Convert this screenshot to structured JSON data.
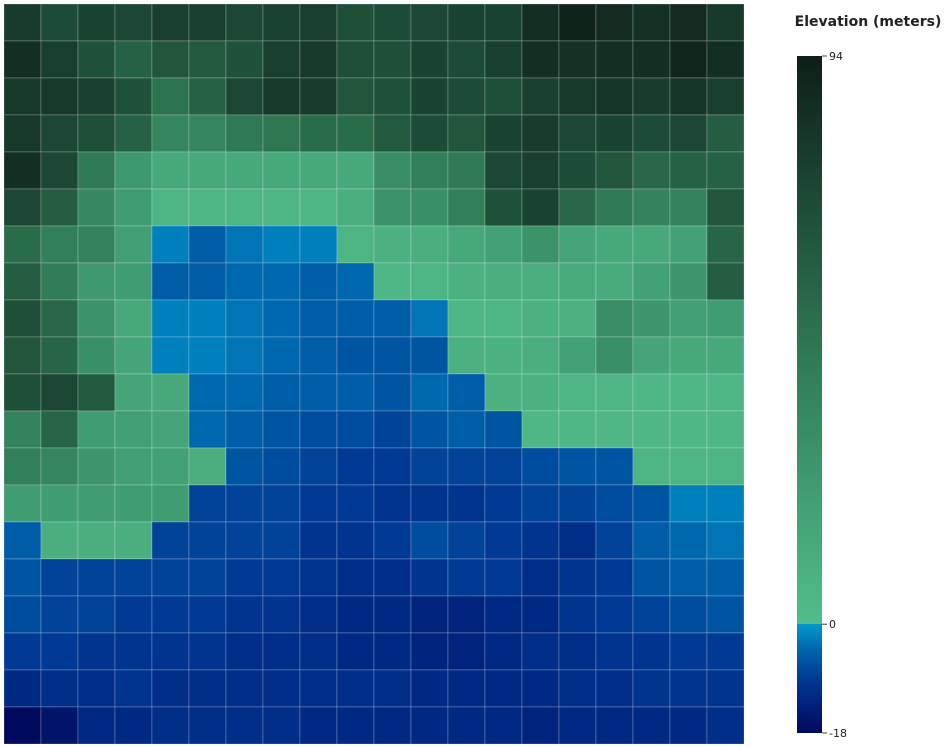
{
  "chart_data": {
    "type": "heatmap",
    "title": "",
    "xlabel": "",
    "ylabel": "",
    "rows": 20,
    "cols": 20,
    "grid": true,
    "legend": {
      "title": "Elevation (meters)",
      "placement": "right",
      "min": -18,
      "max": 94,
      "break": 0,
      "tick_labels": [
        "94",
        "0",
        "-18"
      ],
      "tick_values": [
        94,
        0,
        -18
      ]
    },
    "colorscale": {
      "negative": [
        "#000a5c",
        "#00207a",
        "#003a94",
        "#0062aa",
        "#0099cc"
      ],
      "positive": [
        "#52bd8a",
        "#3f9a6f",
        "#2d7550",
        "#1c4a36",
        "#0e1f18"
      ]
    },
    "values": [
      [
        78,
        70,
        74,
        72,
        76,
        76,
        72,
        75,
        77,
        68,
        70,
        72,
        74,
        74,
        85,
        92,
        88,
        84,
        88,
        80
      ],
      [
        86,
        77,
        66,
        58,
        64,
        62,
        66,
        76,
        80,
        68,
        68,
        74,
        70,
        76,
        86,
        84,
        86,
        86,
        90,
        86
      ],
      [
        80,
        80,
        76,
        66,
        48,
        58,
        72,
        80,
        78,
        64,
        66,
        74,
        70,
        68,
        76,
        80,
        82,
        78,
        82,
        76
      ],
      [
        80,
        72,
        68,
        58,
        36,
        36,
        44,
        46,
        52,
        52,
        62,
        70,
        64,
        74,
        78,
        72,
        74,
        70,
        72,
        60
      ],
      [
        86,
        72,
        44,
        24,
        14,
        14,
        14,
        14,
        14,
        14,
        32,
        40,
        44,
        72,
        76,
        70,
        64,
        54,
        58,
        58
      ],
      [
        72,
        60,
        34,
        22,
        6,
        6,
        6,
        6,
        6,
        10,
        28,
        30,
        40,
        66,
        74,
        54,
        44,
        38,
        38,
        64
      ],
      [
        52,
        40,
        38,
        20,
        -2,
        -5,
        -3,
        -2,
        -2,
        6,
        8,
        10,
        14,
        18,
        28,
        16,
        14,
        14,
        18,
        56
      ],
      [
        60,
        42,
        24,
        22,
        -5,
        -5,
        -4,
        -4,
        -5,
        -4,
        4,
        6,
        8,
        10,
        10,
        12,
        12,
        18,
        26,
        60
      ],
      [
        68,
        54,
        28,
        14,
        -2,
        -2,
        -3,
        -4,
        -5,
        -5,
        -5,
        -3,
        4,
        6,
        8,
        8,
        32,
        26,
        20,
        22
      ],
      [
        64,
        56,
        30,
        16,
        -2,
        -2,
        -3,
        -4,
        -5,
        -6,
        -6,
        -6,
        8,
        8,
        10,
        18,
        30,
        16,
        14,
        14
      ],
      [
        68,
        72,
        62,
        16,
        14,
        -4,
        -4,
        -5,
        -5,
        -5,
        -6,
        -4,
        -5,
        8,
        8,
        6,
        6,
        4,
        4,
        4
      ],
      [
        38,
        56,
        22,
        20,
        16,
        -4,
        -5,
        -6,
        -7,
        -7,
        -8,
        -6,
        -5,
        -6,
        4,
        4,
        4,
        4,
        4,
        4
      ],
      [
        40,
        36,
        26,
        20,
        18,
        10,
        -6,
        -7,
        -8,
        -9,
        -9,
        -8,
        -8,
        -8,
        -7,
        -6,
        -6,
        6,
        6,
        6
      ],
      [
        22,
        22,
        22,
        22,
        22,
        -8,
        -8,
        -8,
        -9,
        -9,
        -10,
        -10,
        -10,
        -9,
        -8,
        -8,
        -7,
        -6,
        -2,
        -2
      ],
      [
        -5,
        10,
        10,
        10,
        -8,
        -8,
        -8,
        -8,
        -10,
        -10,
        -9,
        -7,
        -8,
        -9,
        -10,
        -11,
        -8,
        -5,
        -4,
        -3
      ],
      [
        -6,
        -8,
        -8,
        -8,
        -8,
        -8,
        -9,
        -9,
        -10,
        -11,
        -11,
        -10,
        -9,
        -9,
        -11,
        -10,
        -9,
        -6,
        -5,
        -5
      ],
      [
        -7,
        -8,
        -8,
        -9,
        -9,
        -9,
        -10,
        -10,
        -11,
        -12,
        -12,
        -13,
        -13,
        -12,
        -12,
        -10,
        -9,
        -8,
        -7,
        -6
      ],
      [
        -9,
        -9,
        -10,
        -10,
        -10,
        -10,
        -11,
        -11,
        -11,
        -12,
        -12,
        -13,
        -13,
        -12,
        -11,
        -11,
        -10,
        -10,
        -9,
        -9
      ],
      [
        -12,
        -11,
        -11,
        -10,
        -11,
        -11,
        -11,
        -11,
        -11,
        -11,
        -11,
        -12,
        -12,
        -12,
        -12,
        -11,
        -11,
        -10,
        -10,
        -10
      ],
      [
        -18,
        -16,
        -12,
        -12,
        -11,
        -11,
        -11,
        -11,
        -12,
        -12,
        -12,
        -12,
        -12,
        -12,
        -13,
        -12,
        -12,
        -12,
        -12,
        -11
      ]
    ]
  }
}
